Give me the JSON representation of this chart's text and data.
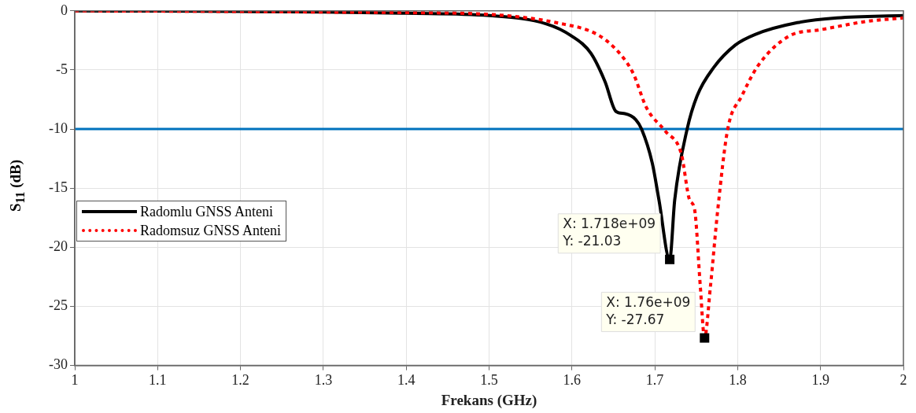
{
  "chart_data": {
    "type": "line",
    "xlabel": "Frekans (GHz)",
    "ylabel": "S$_{11}$ (dB)",
    "xlim": [
      1,
      2
    ],
    "xticks": [
      1,
      1.1,
      1.2,
      1.3,
      1.4,
      1.5,
      1.6,
      1.7,
      1.8,
      1.9,
      2
    ],
    "ylim": [
      -30,
      0
    ],
    "yticks": [
      -30,
      -25,
      -20,
      -15,
      -10,
      -5,
      0
    ],
    "grid": true,
    "legend": "left",
    "marker": "none",
    "series": [
      {
        "name": "Radomlu GNSS Anteni",
        "color": "#000000",
        "line_style": "solid",
        "x": [
          1,
          1.1,
          1.2,
          1.3,
          1.4,
          1.5,
          1.569,
          1.599,
          1.623,
          1.64,
          1.653,
          1.664,
          1.677,
          1.684,
          1.697,
          1.705,
          1.718,
          1.724,
          1.739,
          1.751,
          1.771,
          1.797,
          1.821,
          1.872,
          1.92,
          2
        ],
        "values": [
          0,
          -0.02,
          -0.05,
          -0.1,
          -0.2,
          -0.4,
          -1.1,
          -2.1,
          -3.6,
          -6,
          -8.5,
          -8.7,
          -9.2,
          -10,
          -12.9,
          -16,
          -21.03,
          -16,
          -10,
          -7.2,
          -4.8,
          -2.9,
          -2,
          -1,
          -0.6,
          -0.4
        ]
      },
      {
        "name": "Radomsuz GNSS Anteni",
        "color": "#ff0000",
        "line_style": "dotted",
        "x": [
          1,
          1.1,
          1.2,
          1.3,
          1.4,
          1.5,
          1.581,
          1.633,
          1.66,
          1.674,
          1.69,
          1.713,
          1.732,
          1.742,
          1.748,
          1.755,
          1.76,
          1.767,
          1.776,
          1.788,
          1.805,
          1.825,
          1.863,
          1.9,
          1.955,
          2
        ],
        "values": [
          0,
          -0.02,
          -0.05,
          -0.1,
          -0.15,
          -0.3,
          -1,
          -2.1,
          -3.8,
          -5.3,
          -8.2,
          -10.2,
          -12.1,
          -16,
          -16.8,
          -23.4,
          -27.67,
          -23.4,
          -16.8,
          -10,
          -7.2,
          -4.6,
          -2.1,
          -1.6,
          -0.9,
          -0.6
        ]
      }
    ],
    "ref_lines": [
      {
        "axis": "y",
        "value": -10,
        "color": "#0072bd"
      }
    ],
    "annotations": [
      {
        "text": "X: 1.718e+09\nY: -21.03",
        "x": 1.718,
        "y": -21.03
      },
      {
        "text": "X: 1.76e+09\nY: -27.67",
        "x": 1.76,
        "y": -27.67
      }
    ]
  }
}
